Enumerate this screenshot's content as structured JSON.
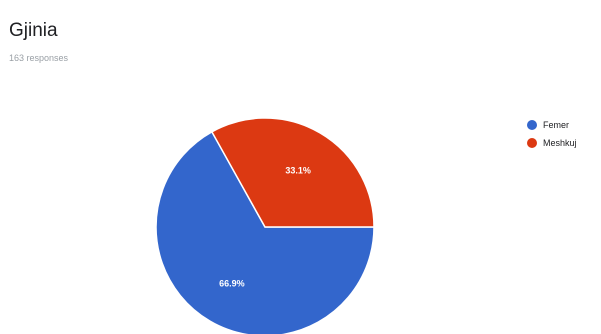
{
  "header": {
    "title": "Gjinia",
    "subtitle": "163 responses"
  },
  "chart_data": {
    "type": "pie",
    "title": "Gjinia",
    "subtitle": "163 responses",
    "categories": [
      "Femer",
      "Meshkuj"
    ],
    "values": [
      66.9,
      33.1
    ],
    "labels": [
      "66.9%",
      "33.1%"
    ],
    "colors": [
      "#3366cc",
      "#dc3912"
    ],
    "legend_position": "right"
  }
}
